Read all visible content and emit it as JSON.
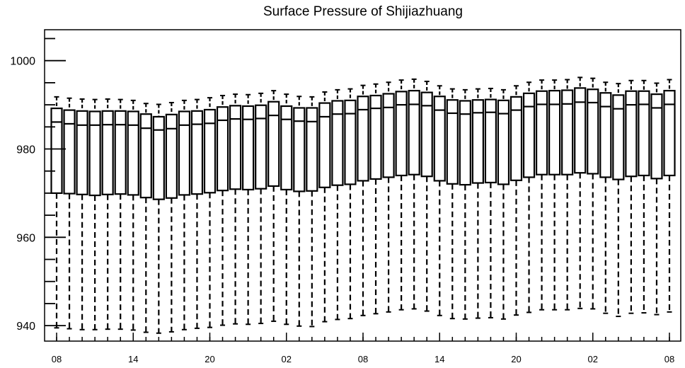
{
  "chart_data": {
    "type": "boxplot",
    "title": "Surface Pressure of Shijiazhuang",
    "xlabel": "",
    "ylabel": "",
    "ylim": [
      936.5,
      1007
    ],
    "y_ticks": [
      940,
      960,
      980,
      1000
    ],
    "x_tick_labels": [
      "08",
      "14",
      "20",
      "02",
      "08",
      "14",
      "20",
      "02",
      "08"
    ],
    "x_tick_positions": [
      0,
      6,
      12,
      18,
      24,
      30,
      36,
      42,
      48
    ],
    "grid": false,
    "whisker_style": "dashed",
    "boxes": [
      {
        "x": 0,
        "q1": 970.0,
        "median": 986.1,
        "q3": 989.2,
        "low": 939.5,
        "high": 991.8
      },
      {
        "x": 1,
        "q1": 969.9,
        "median": 985.7,
        "q3": 988.8,
        "low": 939.3,
        "high": 991.5
      },
      {
        "x": 2,
        "q1": 969.7,
        "median": 985.4,
        "q3": 988.6,
        "low": 939.1,
        "high": 991.3
      },
      {
        "x": 3,
        "q1": 969.5,
        "median": 985.4,
        "q3": 988.5,
        "low": 939.1,
        "high": 991.2
      },
      {
        "x": 4,
        "q1": 969.7,
        "median": 985.5,
        "q3": 988.6,
        "low": 939.2,
        "high": 991.3
      },
      {
        "x": 5,
        "q1": 969.8,
        "median": 985.5,
        "q3": 988.6,
        "low": 939.2,
        "high": 991.2
      },
      {
        "x": 6,
        "q1": 969.6,
        "median": 985.4,
        "q3": 988.5,
        "low": 939.0,
        "high": 991.0
      },
      {
        "x": 7,
        "q1": 969.0,
        "median": 984.7,
        "q3": 987.9,
        "low": 938.5,
        "high": 990.3
      },
      {
        "x": 8,
        "q1": 968.6,
        "median": 984.3,
        "q3": 987.3,
        "low": 938.3,
        "high": 990.1
      },
      {
        "x": 9,
        "q1": 968.9,
        "median": 984.6,
        "q3": 987.8,
        "low": 938.6,
        "high": 990.5
      },
      {
        "x": 10,
        "q1": 969.6,
        "median": 985.4,
        "q3": 988.5,
        "low": 939.1,
        "high": 991.0
      },
      {
        "x": 11,
        "q1": 969.8,
        "median": 985.6,
        "q3": 988.6,
        "low": 939.4,
        "high": 991.2
      },
      {
        "x": 12,
        "q1": 970.1,
        "median": 985.8,
        "q3": 988.9,
        "low": 939.6,
        "high": 991.6
      },
      {
        "x": 13,
        "q1": 970.6,
        "median": 986.5,
        "q3": 989.5,
        "low": 940.1,
        "high": 992.1
      },
      {
        "x": 14,
        "q1": 970.9,
        "median": 986.8,
        "q3": 989.8,
        "low": 940.4,
        "high": 992.4
      },
      {
        "x": 15,
        "q1": 970.8,
        "median": 986.7,
        "q3": 989.7,
        "low": 940.3,
        "high": 992.3
      },
      {
        "x": 16,
        "q1": 971.0,
        "median": 986.9,
        "q3": 989.9,
        "low": 940.5,
        "high": 992.6
      },
      {
        "x": 17,
        "q1": 971.6,
        "median": 987.6,
        "q3": 990.7,
        "low": 941.0,
        "high": 993.2
      },
      {
        "x": 18,
        "q1": 970.8,
        "median": 986.7,
        "q3": 989.7,
        "low": 940.3,
        "high": 992.4
      },
      {
        "x": 19,
        "q1": 970.4,
        "median": 986.3,
        "q3": 989.3,
        "low": 939.9,
        "high": 991.9
      },
      {
        "x": 20,
        "q1": 970.5,
        "median": 986.2,
        "q3": 989.3,
        "low": 939.8,
        "high": 991.8
      },
      {
        "x": 21,
        "q1": 971.3,
        "median": 987.3,
        "q3": 990.4,
        "low": 940.9,
        "high": 992.9
      },
      {
        "x": 22,
        "q1": 971.8,
        "median": 987.9,
        "q3": 990.9,
        "low": 941.4,
        "high": 993.4
      },
      {
        "x": 23,
        "q1": 972.0,
        "median": 988.0,
        "q3": 991.0,
        "low": 941.6,
        "high": 993.6
      },
      {
        "x": 24,
        "q1": 972.8,
        "median": 988.9,
        "q3": 991.9,
        "low": 942.3,
        "high": 994.4
      },
      {
        "x": 25,
        "q1": 973.2,
        "median": 989.2,
        "q3": 992.1,
        "low": 942.7,
        "high": 994.7
      },
      {
        "x": 26,
        "q1": 973.6,
        "median": 989.4,
        "q3": 992.5,
        "low": 943.1,
        "high": 995.1
      },
      {
        "x": 27,
        "q1": 974.0,
        "median": 990.0,
        "q3": 993.0,
        "low": 943.6,
        "high": 995.6
      },
      {
        "x": 28,
        "q1": 974.2,
        "median": 990.1,
        "q3": 993.2,
        "low": 943.8,
        "high": 995.8
      },
      {
        "x": 29,
        "q1": 973.8,
        "median": 989.8,
        "q3": 992.8,
        "low": 943.3,
        "high": 995.3
      },
      {
        "x": 30,
        "q1": 972.8,
        "median": 988.8,
        "q3": 991.9,
        "low": 942.3,
        "high": 994.3
      },
      {
        "x": 31,
        "q1": 972.1,
        "median": 988.1,
        "q3": 991.1,
        "low": 941.6,
        "high": 993.6
      },
      {
        "x": 32,
        "q1": 971.9,
        "median": 987.9,
        "q3": 990.9,
        "low": 941.5,
        "high": 993.4
      },
      {
        "x": 33,
        "q1": 972.3,
        "median": 988.2,
        "q3": 991.1,
        "low": 941.7,
        "high": 993.6
      },
      {
        "x": 34,
        "q1": 972.4,
        "median": 988.3,
        "q3": 991.2,
        "low": 941.8,
        "high": 993.7
      },
      {
        "x": 35,
        "q1": 972.0,
        "median": 988.0,
        "q3": 991.0,
        "low": 941.5,
        "high": 993.4
      },
      {
        "x": 36,
        "q1": 972.9,
        "median": 988.8,
        "q3": 991.8,
        "low": 942.4,
        "high": 994.3
      },
      {
        "x": 37,
        "q1": 973.6,
        "median": 989.6,
        "q3": 992.6,
        "low": 943.0,
        "high": 995.1
      },
      {
        "x": 38,
        "q1": 974.2,
        "median": 990.1,
        "q3": 993.1,
        "low": 943.6,
        "high": 995.6
      },
      {
        "x": 39,
        "q1": 974.2,
        "median": 990.1,
        "q3": 993.2,
        "low": 943.6,
        "high": 995.6
      },
      {
        "x": 40,
        "q1": 974.2,
        "median": 990.2,
        "q3": 993.3,
        "low": 943.6,
        "high": 995.7
      },
      {
        "x": 41,
        "q1": 974.6,
        "median": 990.6,
        "q3": 993.8,
        "low": 943.9,
        "high": 996.2
      },
      {
        "x": 42,
        "q1": 974.4,
        "median": 990.5,
        "q3": 993.5,
        "low": 943.8,
        "high": 996.0
      },
      {
        "x": 43,
        "q1": 973.6,
        "median": 989.6,
        "q3": 992.7,
        "low": 942.8,
        "high": 995.1
      },
      {
        "x": 44,
        "q1": 973.1,
        "median": 989.1,
        "q3": 992.2,
        "low": 942.1,
        "high": 994.8
      },
      {
        "x": 45,
        "q1": 973.8,
        "median": 990.0,
        "q3": 993.1,
        "low": 942.8,
        "high": 995.5
      },
      {
        "x": 46,
        "q1": 974.0,
        "median": 990.1,
        "q3": 993.1,
        "low": 942.9,
        "high": 995.5
      },
      {
        "x": 47,
        "q1": 973.3,
        "median": 989.3,
        "q3": 992.4,
        "low": 942.5,
        "high": 994.9
      },
      {
        "x": 48,
        "q1": 974.0,
        "median": 990.1,
        "q3": 993.2,
        "low": 943.1,
        "high": 995.7
      }
    ]
  }
}
